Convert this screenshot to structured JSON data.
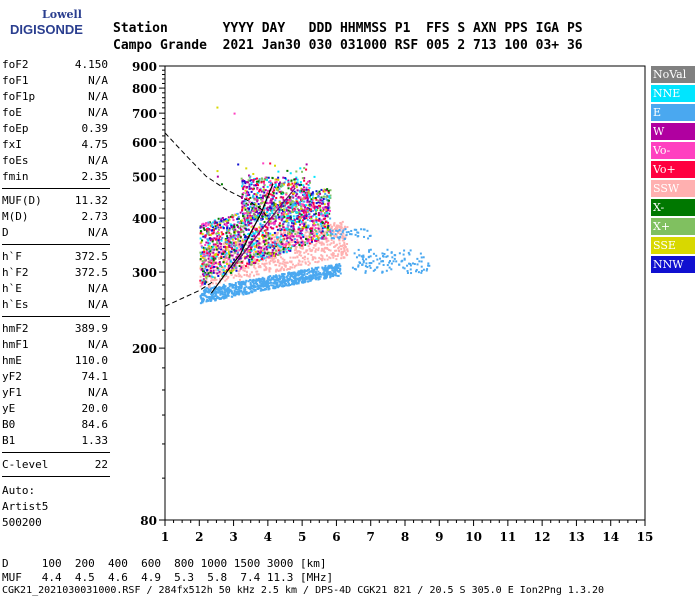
{
  "logo": {
    "line1": "Lowell",
    "line2": "DIGISONDE"
  },
  "header": {
    "line1": "Station       YYYY DAY   DDD HHMMSS P1  FFS S AXN PPS IGA PS",
    "line2": "Campo Grande  2021 Jan30 030 031000 RSF 005 2 713 100 03+ 36"
  },
  "params": [
    {
      "label": "foF2",
      "value": "4.150"
    },
    {
      "label": "foF1",
      "value": "N/A"
    },
    {
      "label": "foF1p",
      "value": "N/A"
    },
    {
      "label": "foE",
      "value": "N/A"
    },
    {
      "label": "foEp",
      "value": "0.39"
    },
    {
      "label": "fxI",
      "value": "4.75"
    },
    {
      "label": "foEs",
      "value": "N/A"
    },
    {
      "label": "fmin",
      "value": "2.35"
    },
    {
      "label": "MUF(D)",
      "value": "11.32"
    },
    {
      "label": "M(D)",
      "value": "2.73"
    },
    {
      "label": "D",
      "value": "N/A"
    },
    {
      "label": "h`F",
      "value": "372.5"
    },
    {
      "label": "h`F2",
      "value": "372.5"
    },
    {
      "label": "h`E",
      "value": "N/A"
    },
    {
      "label": "h`Es",
      "value": "N/A"
    },
    {
      "label": "hmF2",
      "value": "389.9"
    },
    {
      "label": "hmF1",
      "value": "N/A"
    },
    {
      "label": "hmE",
      "value": "110.0"
    },
    {
      "label": "yF2",
      "value": "74.1"
    },
    {
      "label": "yF1",
      "value": "N/A"
    },
    {
      "label": "yE",
      "value": "20.0"
    },
    {
      "label": "B0",
      "value": "84.6"
    },
    {
      "label": "B1",
      "value": "1.33"
    },
    {
      "label": "C-level",
      "value": "22"
    }
  ],
  "auto": {
    "line1": "Auto:",
    "line2": "Artist5",
    "line3": "500200"
  },
  "legend": [
    {
      "label": "NoVal",
      "color": "#808080"
    },
    {
      "label": "NNE",
      "color": "#00e5ff"
    },
    {
      "label": "E",
      "color": "#4aa8f0"
    },
    {
      "label": "W",
      "color": "#b000a0"
    },
    {
      "label": "Vo-",
      "color": "#ff40c0"
    },
    {
      "label": "Vo+",
      "color": "#ff0040"
    },
    {
      "label": "SSW",
      "color": "#ffb0b0"
    },
    {
      "label": "X-",
      "color": "#007800"
    },
    {
      "label": "X+",
      "color": "#80c060"
    },
    {
      "label": "SSE",
      "color": "#d8d800"
    },
    {
      "label": "NNW",
      "color": "#1010d0"
    }
  ],
  "footer": {
    "line1": "D     100  200  400  600  800 1000 1500 3000 [km]",
    "line2": "MUF   4.4  4.5  4.6  4.9  5.3  5.8  7.4 11.3 [MHz]",
    "line3": "CGK21_2021030031000.RSF / 284fx512h 50 kHz 2.5 km / DPS-4D CGK21 821 / 20.5 S 305.0 E Ion2Png 1.3.20"
  },
  "chart_data": {
    "type": "scatter",
    "xlim": [
      1,
      15
    ],
    "ylim": [
      80,
      900
    ],
    "x_ticks": [
      1,
      2,
      3,
      4,
      5,
      6,
      7,
      8,
      9,
      10,
      11,
      12,
      13,
      14,
      15
    ],
    "y_ticks": [
      80,
      200,
      300,
      400,
      500,
      600,
      700,
      800,
      900
    ],
    "y_scale": "log",
    "trace_o_profile": [
      [
        2.35,
        268
      ],
      [
        2.8,
        300
      ],
      [
        3.2,
        330
      ],
      [
        3.5,
        370
      ],
      [
        3.8,
        410
      ],
      [
        4.0,
        450
      ],
      [
        4.15,
        480
      ]
    ],
    "trace_x_profile": [
      [
        3.0,
        310
      ],
      [
        3.4,
        340
      ],
      [
        3.8,
        375
      ],
      [
        4.3,
        420
      ],
      [
        4.8,
        470
      ]
    ],
    "profile_dashed": [
      [
        1.0,
        630
      ],
      [
        1.6,
        560
      ],
      [
        2.2,
        500
      ],
      [
        2.8,
        465
      ],
      [
        3.4,
        440
      ],
      [
        3.8,
        420
      ],
      [
        4.0,
        400
      ]
    ],
    "profile_dashed_lower": [
      [
        1.0,
        250
      ],
      [
        2.0,
        272
      ],
      [
        2.4,
        285
      ]
    ]
  }
}
